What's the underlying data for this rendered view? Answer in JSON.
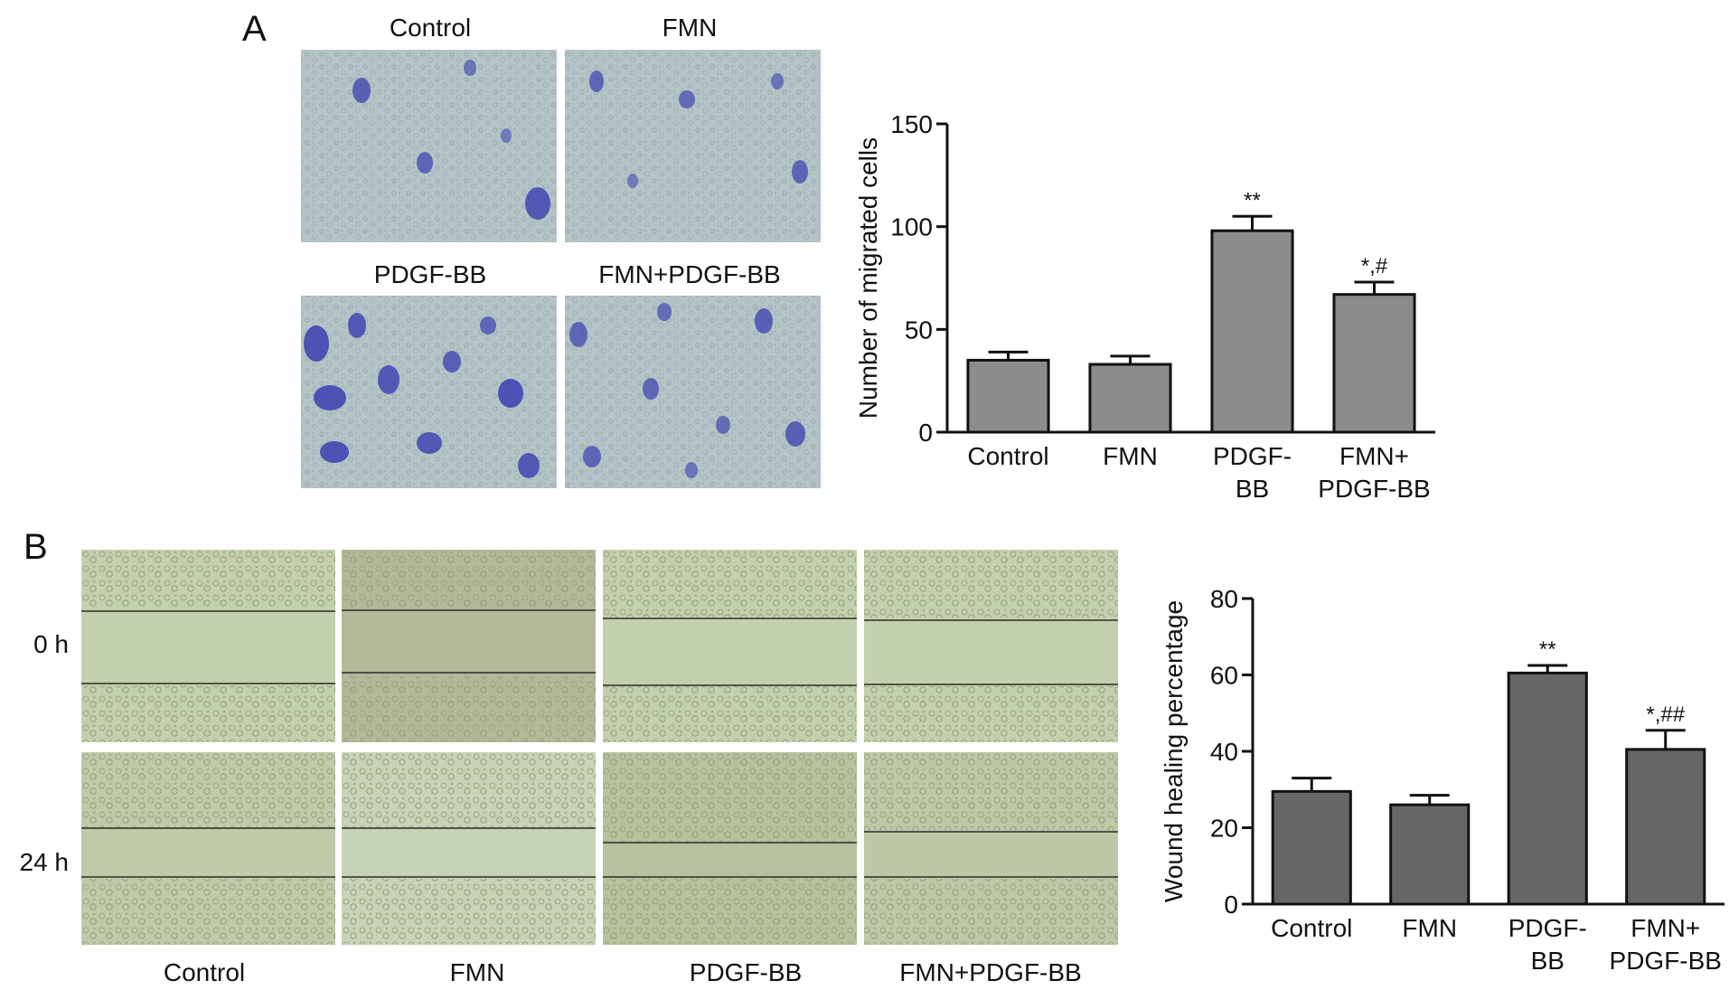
{
  "panels": [
    {
      "label": "A",
      "micrographs": {
        "titles": [
          "Control",
          "FMN",
          "PDGF-BB",
          "FMN+PDGF-BB"
        ],
        "stain_color": "#3b3fb0",
        "background_color": "#b4c4c6"
      }
    },
    {
      "label": "B",
      "micrographs": {
        "row_labels": [
          "0 h",
          "24 h"
        ],
        "column_labels": [
          "Control",
          "FMN",
          "PDGF-BB",
          "FMN+PDGF-BB"
        ],
        "background_color": "#c3d0b0"
      }
    }
  ],
  "chart_data": [
    {
      "type": "bar",
      "panel": "A",
      "categories": [
        [
          "Control"
        ],
        [
          "FMN"
        ],
        [
          "PDGF-",
          "BB"
        ],
        [
          "FMN+",
          "PDGF-BB"
        ]
      ],
      "values": [
        35,
        33,
        98,
        67
      ],
      "errors": [
        4,
        4,
        7,
        6
      ],
      "annotations": [
        "",
        "",
        "**",
        "*,#"
      ],
      "title": "",
      "xlabel": "",
      "ylabel": "Number of migrated cells",
      "ylim": [
        0,
        150
      ],
      "yticks": [
        0,
        50,
        100,
        150
      ],
      "bar_color": "#8c8c8c",
      "grid": false
    },
    {
      "type": "bar",
      "panel": "B",
      "categories": [
        [
          "Control"
        ],
        [
          "FMN"
        ],
        [
          "PDGF-",
          "BB"
        ],
        [
          "FMN+",
          "PDGF-BB"
        ]
      ],
      "values": [
        29.5,
        26,
        60.5,
        40.5
      ],
      "errors": [
        3.5,
        2.5,
        2,
        5
      ],
      "annotations": [
        "",
        "",
        "**",
        "*,##"
      ],
      "title": "",
      "xlabel": "",
      "ylabel": "Wound healing percentage",
      "ylim": [
        0,
        80
      ],
      "yticks": [
        0,
        20,
        40,
        60,
        80
      ],
      "bar_color": "#666666",
      "grid": false
    }
  ]
}
